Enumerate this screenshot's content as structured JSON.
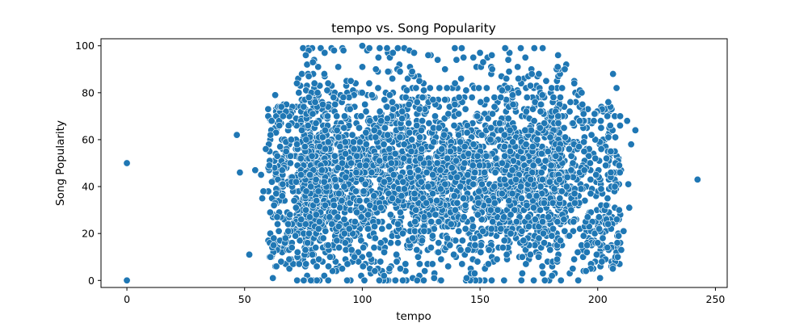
{
  "chart_data": {
    "type": "scatter",
    "title": "tempo vs. Song Popularity",
    "xlabel": "tempo",
    "ylabel": "Song Popularity",
    "xlim": [
      -11,
      255
    ],
    "ylim": [
      -3,
      103
    ],
    "xticks": [
      0,
      50,
      100,
      150,
      200,
      250
    ],
    "yticks": [
      0,
      20,
      40,
      60,
      80,
      100
    ],
    "grid": false,
    "point_color": "#1f77b4",
    "point_edge_color": "#ffffff",
    "series": [
      {
        "points": [
          [
            0,
            50
          ],
          [
            0,
            0
          ],
          [
            46.7,
            62
          ],
          [
            48.0,
            46
          ],
          [
            52.0,
            11
          ],
          [
            54.5,
            47
          ],
          [
            57.0,
            45
          ],
          [
            58.0,
            38
          ],
          [
            242.4,
            43
          ],
          [
            216.0,
            64
          ],
          [
            214.2,
            58
          ],
          [
            213.0,
            41
          ],
          [
            213.4,
            31
          ],
          [
            212.5,
            68
          ],
          [
            211.0,
            21
          ],
          [
            206.5,
            88
          ],
          [
            208.0,
            82
          ],
          [
            204.5,
            76
          ],
          [
            209.5,
            66
          ],
          [
            210.0,
            13
          ],
          [
            207.5,
            10
          ],
          [
            208.5,
            10
          ],
          [
            199.0,
            16
          ],
          [
            200.0,
            16
          ],
          [
            201.0,
            1
          ],
          [
            197.0,
            5
          ],
          [
            194.0,
            4
          ],
          [
            195.0,
            4
          ],
          [
            190.0,
            9
          ],
          [
            191.5,
            12
          ],
          [
            60.0,
            73
          ],
          [
            63.0,
            79
          ],
          [
            61.0,
            62
          ],
          [
            59.0,
            56
          ],
          [
            62.0,
            1
          ],
          [
            63.5,
            6
          ],
          [
            65.5,
            8
          ],
          [
            64.0,
            24
          ],
          [
            62.5,
            32
          ],
          [
            61.0,
            10
          ],
          [
            66.0,
            36
          ],
          [
            57.5,
            35
          ],
          [
            60.5,
            49
          ],
          [
            76.0,
            96
          ],
          [
            79.0,
            93
          ],
          [
            84.0,
            97
          ],
          [
            88.0,
            98
          ],
          [
            92.0,
            98
          ],
          [
            100.0,
            100
          ],
          [
            103.0,
            99
          ],
          [
            113.0,
            97
          ],
          [
            120.0,
            98
          ],
          [
            122.0,
            97
          ],
          [
            128.0,
            96
          ],
          [
            132.0,
            94
          ],
          [
            140.0,
            94
          ],
          [
            143.0,
            95
          ],
          [
            150.0,
            97
          ],
          [
            155.0,
            96
          ],
          [
            166.0,
            91
          ],
          [
            172.0,
            88
          ],
          [
            175.0,
            88
          ],
          [
            183.0,
            91
          ],
          [
            186.0,
            90
          ]
        ]
      }
    ]
  }
}
